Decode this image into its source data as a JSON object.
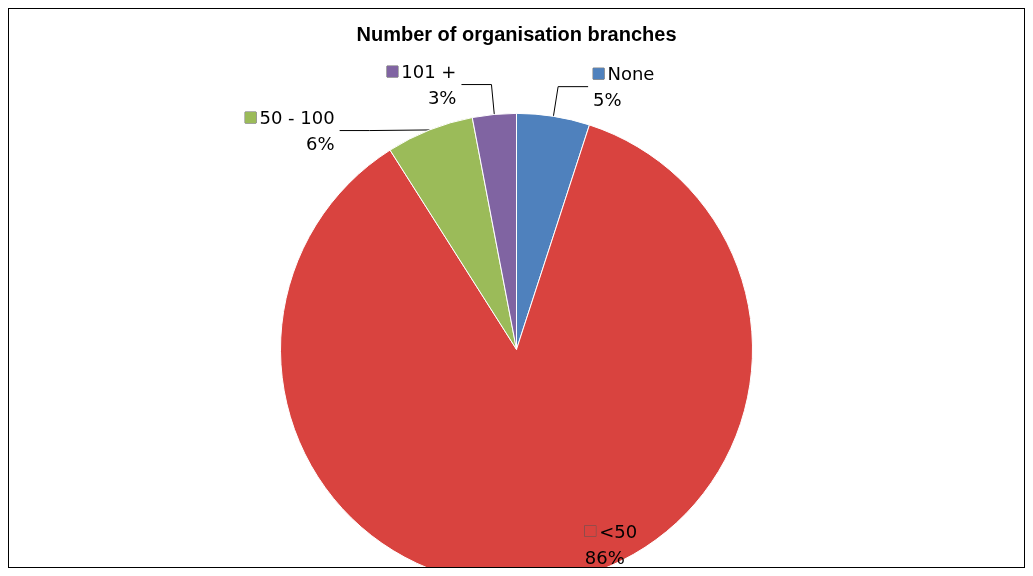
{
  "chart_data": {
    "type": "pie",
    "title": "Number of organisation branches",
    "categories": [
      "None",
      "<50",
      "50 - 100",
      "101 +"
    ],
    "values": [
      5,
      86,
      6,
      3
    ],
    "colors": [
      "#4f81bd",
      "#d9433f",
      "#9bbb59",
      "#8064a2"
    ],
    "value_labels": [
      "5%",
      "86%",
      "6%",
      "3%"
    ],
    "legend": "top"
  }
}
